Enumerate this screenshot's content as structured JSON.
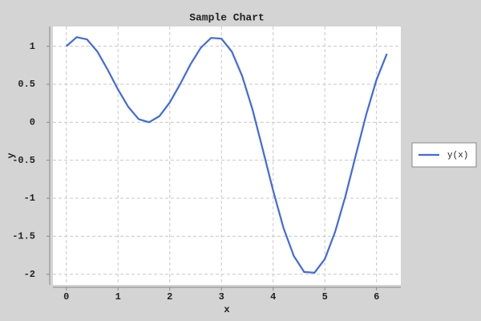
{
  "chart_data": {
    "type": "line",
    "title": "Sample Chart",
    "x_label": "x",
    "y_label": "y",
    "x": [
      0,
      0.2,
      0.4,
      0.6,
      0.8,
      1.0,
      1.2,
      1.4,
      1.6,
      1.8,
      2.0,
      2.2,
      2.4,
      2.6,
      2.8,
      3.0,
      3.2,
      3.4,
      3.6,
      3.8,
      4.0,
      4.2,
      4.4,
      4.6,
      4.8,
      5.0,
      5.2,
      5.4,
      5.6,
      5.8,
      6.0,
      6.2
    ],
    "series": [
      {
        "name": "y(x)",
        "color": "#4169e1",
        "values": [
          1,
          1.12,
          1.09,
          0.93,
          0.69,
          0.43,
          0.2,
          0.04,
          0.0,
          0.08,
          0.26,
          0.5,
          0.76,
          0.98,
          1.11,
          1.1,
          0.93,
          0.61,
          0.17,
          -0.36,
          -0.9,
          -1.39,
          -1.76,
          -1.97,
          -1.98,
          -1.8,
          -1.44,
          -0.97,
          -0.43,
          0.1,
          0.56,
          0.9
        ]
      }
    ],
    "xlim": [
      -0.26,
      6.47
    ],
    "ylim": [
      -2.14,
      1.26
    ],
    "xticks": [
      0,
      1,
      2,
      3,
      4,
      5,
      6
    ],
    "yticks": [
      -2,
      -1.5,
      -1,
      -0.5,
      0,
      0.5,
      1
    ],
    "grid": true,
    "legend": "right"
  }
}
